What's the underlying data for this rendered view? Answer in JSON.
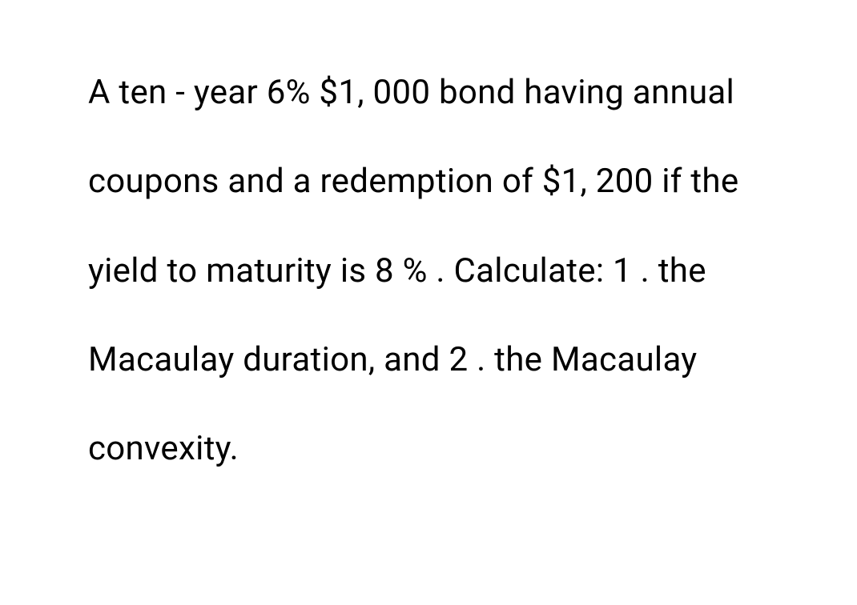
{
  "problem": {
    "text": "A ten - year 6% $1, 000 bond having annual coupons and a redemption of $1, 200 if the yield to maturity is 8 % .  Calculate: 1 .  the Macaulay duration, and 2 .  the Macaulay convexity.",
    "font_size": 42,
    "font_weight": 400,
    "color": "#000000",
    "line_height": 2.65,
    "background_color": "#ffffff"
  }
}
